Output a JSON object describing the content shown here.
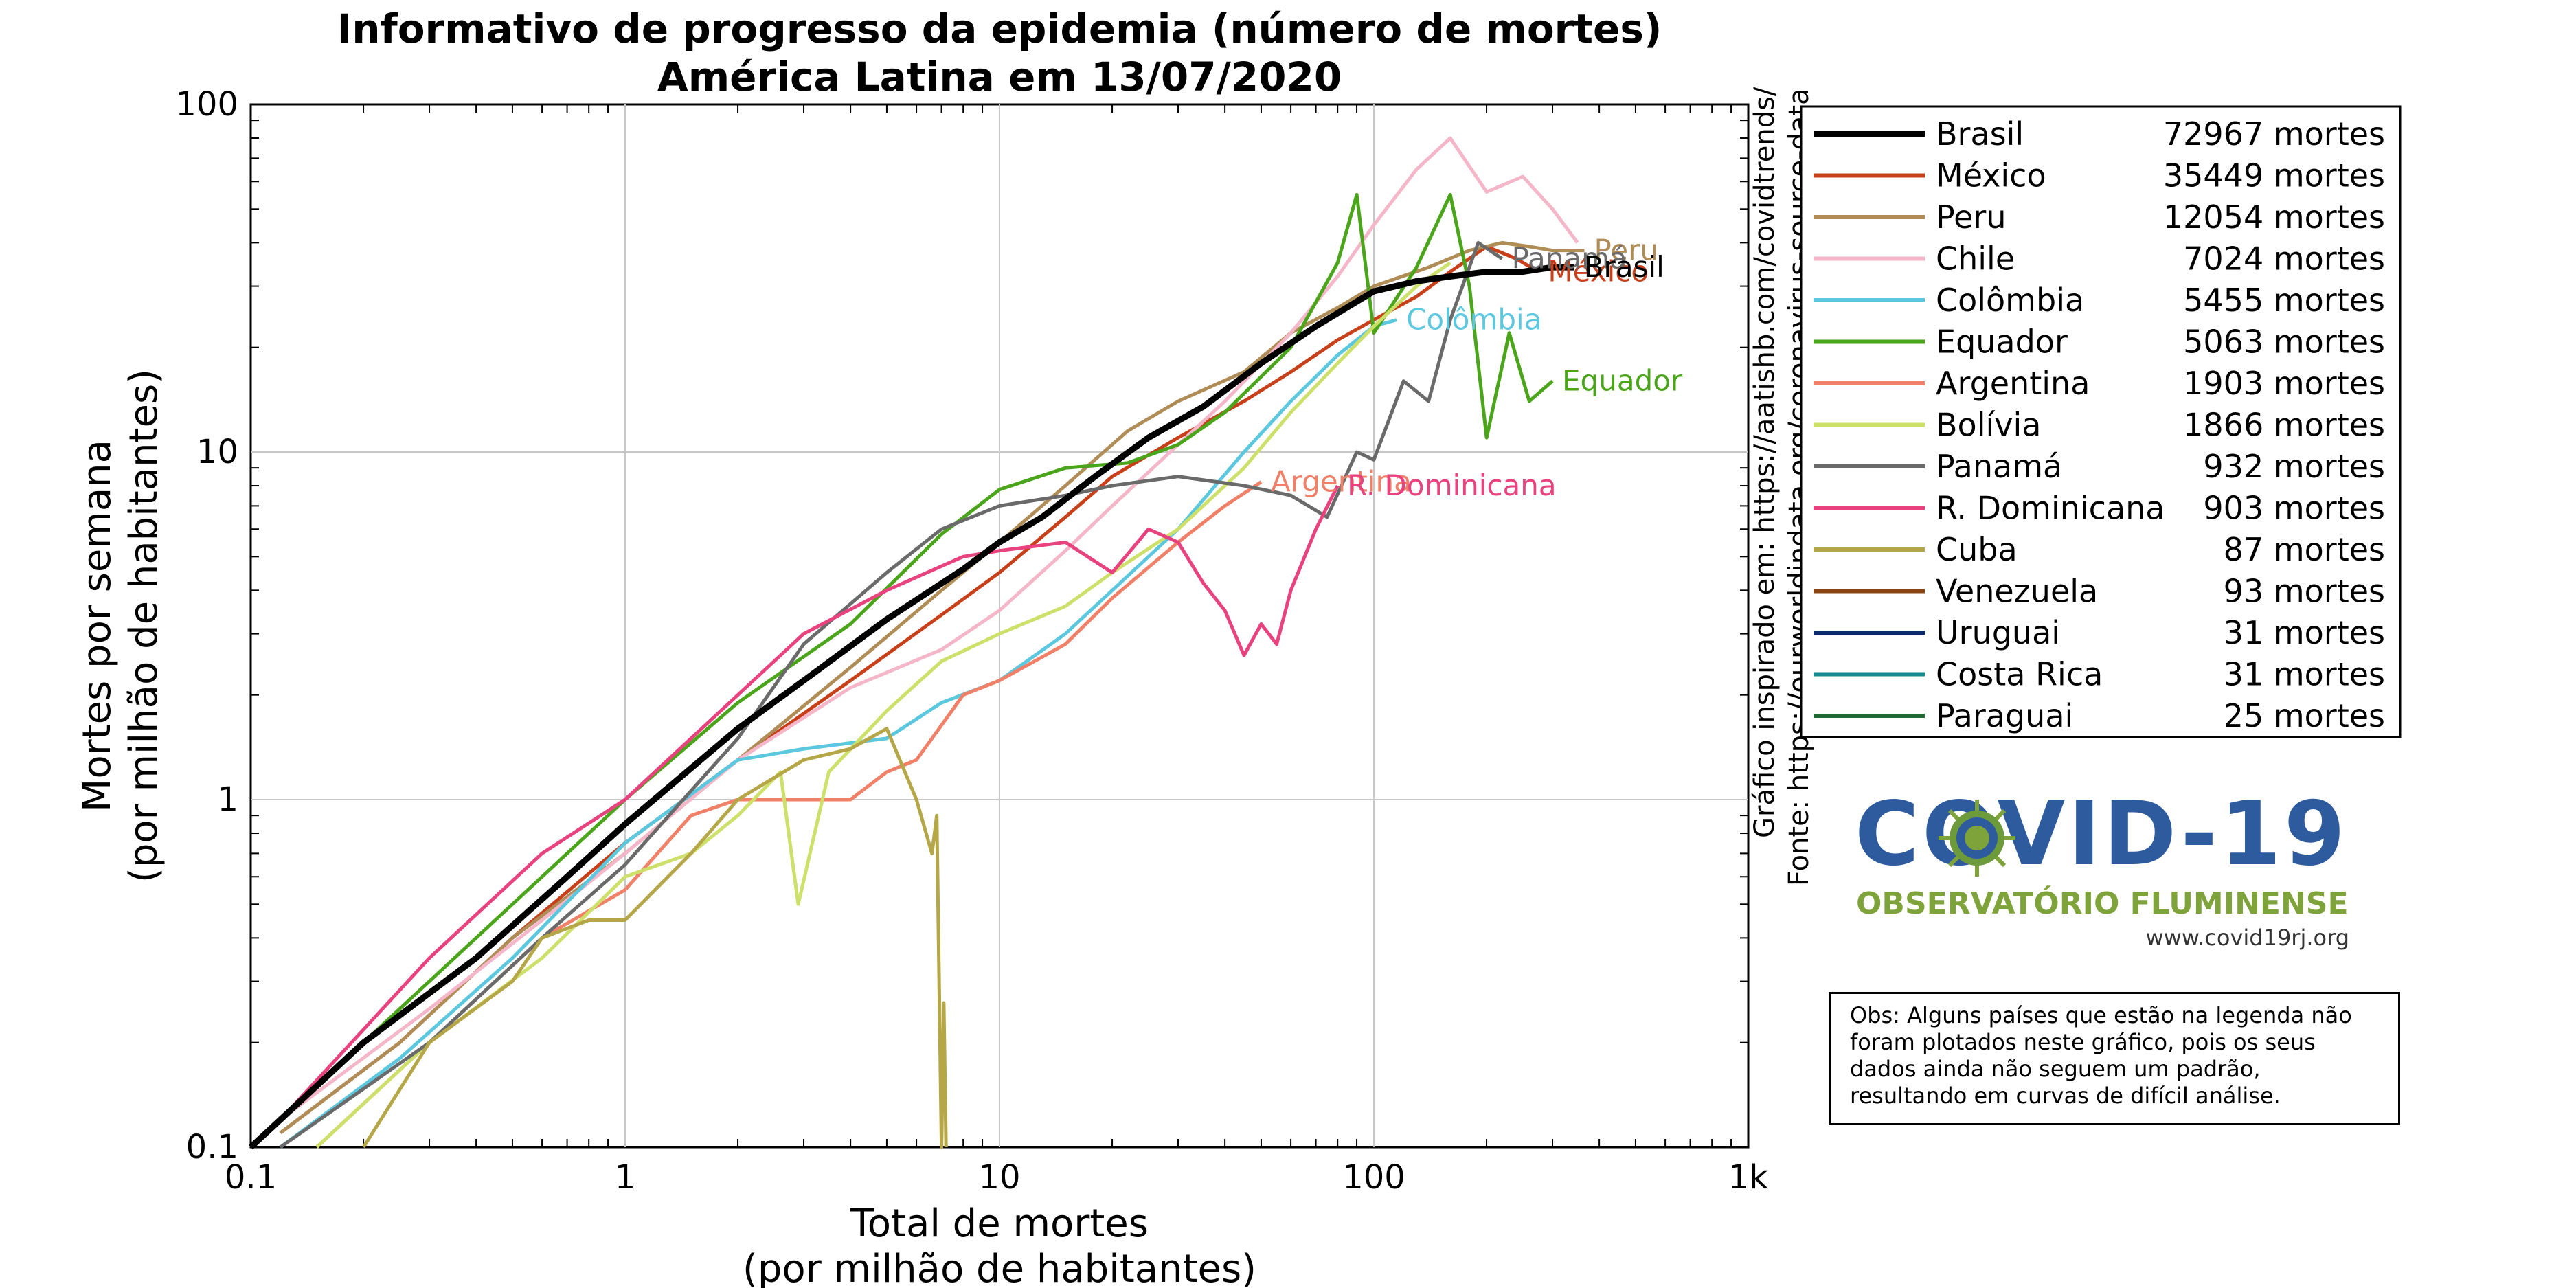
{
  "title_line1": "Informativo de progresso da epidemia (número de mortes)",
  "title_line2": "América Latina em 13/07/2020",
  "chart_data": {
    "type": "line",
    "title": "Informativo de progresso da epidemia (número de mortes) América Latina em 13/07/2020",
    "xlabel_line1": "Total de mortes",
    "xlabel_line2": "(por milhão de habitantes)",
    "ylabel_line1": "Mortes por semana",
    "ylabel_line2": "(por milhão de habitantes)",
    "xscale": "log",
    "yscale": "log",
    "xlim": [
      0.1,
      1000
    ],
    "ylim": [
      0.1,
      100
    ],
    "x_ticks": [
      0.1,
      1,
      10,
      100,
      1000
    ],
    "x_tick_labels": [
      "0.1",
      "1",
      "10",
      "100",
      "1k"
    ],
    "y_ticks": [
      0.1,
      1,
      10,
      100
    ],
    "y_tick_labels": [
      "0.1",
      "1",
      "10",
      "100"
    ],
    "grid": true,
    "legend_position": "right",
    "series": [
      {
        "name": "Brasil",
        "deaths": "72967 mortes",
        "color": "#000000",
        "bold": true,
        "label": "Brasil",
        "x": [
          0.1,
          0.2,
          0.4,
          0.7,
          1,
          2,
          3,
          5,
          8,
          10,
          13,
          18,
          25,
          35,
          50,
          70,
          100,
          130,
          160,
          200,
          250,
          300,
          343
        ],
        "y": [
          0.1,
          0.2,
          0.35,
          0.6,
          0.85,
          1.6,
          2.2,
          3.3,
          4.6,
          5.5,
          6.5,
          8.5,
          11,
          13.5,
          18,
          23,
          29,
          31,
          32,
          33,
          33,
          34,
          34
        ]
      },
      {
        "name": "México",
        "deaths": "35449 mortes",
        "color": "#c7401a",
        "label": "México",
        "x": [
          0.12,
          0.25,
          0.5,
          1,
          2,
          4,
          7,
          10,
          15,
          20,
          30,
          45,
          60,
          80,
          100,
          130,
          160,
          200,
          240,
          275
        ],
        "y": [
          0.11,
          0.2,
          0.4,
          0.75,
          1.3,
          2.2,
          3.4,
          4.5,
          6.5,
          8.5,
          11,
          14,
          17,
          21,
          24,
          28,
          33,
          39,
          36,
          33
        ]
      },
      {
        "name": "Peru",
        "deaths": "12054 mortes",
        "color": "#b08d57",
        "label": "Peru",
        "x": [
          0.12,
          0.25,
          0.5,
          1,
          2,
          4,
          7,
          10,
          15,
          22,
          30,
          45,
          60,
          80,
          100,
          140,
          180,
          220,
          260,
          300,
          365
        ],
        "y": [
          0.11,
          0.2,
          0.4,
          0.7,
          1.3,
          2.4,
          4,
          5.5,
          8,
          11.5,
          14,
          17,
          22,
          26,
          30,
          34,
          38,
          40,
          39,
          38,
          38
        ]
      },
      {
        "name": "Chile",
        "deaths": "7024 mortes",
        "color": "#f4b6c8",
        "label": "",
        "x": [
          0.12,
          0.3,
          0.6,
          1,
          2,
          4,
          7,
          10,
          15,
          20,
          30,
          40,
          60,
          80,
          100,
          130,
          160,
          200,
          250,
          300,
          350
        ],
        "y": [
          0.12,
          0.25,
          0.45,
          0.7,
          1.3,
          2.1,
          2.7,
          3.5,
          5.2,
          7,
          10.5,
          14,
          22,
          32,
          45,
          65,
          80,
          56,
          62,
          50,
          40
        ]
      },
      {
        "name": "Colômbia",
        "deaths": "5455 mortes",
        "color": "#5cc8e0",
        "label": "Colômbia",
        "x": [
          0.12,
          0.25,
          0.5,
          1,
          2,
          3,
          5,
          7,
          10,
          15,
          20,
          30,
          45,
          60,
          80,
          100,
          115
        ],
        "y": [
          0.1,
          0.18,
          0.35,
          0.75,
          1.3,
          1.4,
          1.5,
          1.9,
          2.2,
          3,
          4,
          6,
          10,
          14,
          19,
          23,
          24
        ]
      },
      {
        "name": "Equador",
        "deaths": "5063 mortes",
        "color": "#4aa51b",
        "label": "Equador",
        "x": [
          0.1,
          0.3,
          0.6,
          1,
          2,
          4,
          7,
          10,
          15,
          22,
          30,
          40,
          60,
          80,
          90,
          100,
          130,
          160,
          180,
          200,
          230,
          260,
          300
        ],
        "y": [
          0.1,
          0.3,
          0.6,
          1,
          1.9,
          3.2,
          5.8,
          7.8,
          9,
          9.3,
          10.5,
          13,
          20,
          35,
          55,
          22,
          34,
          55,
          30,
          11,
          22,
          14,
          16
        ]
      },
      {
        "name": "Argentina",
        "deaths": "1903 mortes",
        "color": "#f08068",
        "label": "Argentina",
        "x": [
          0.15,
          0.3,
          0.6,
          1,
          1.5,
          2,
          3,
          4,
          5,
          6,
          8,
          10,
          15,
          20,
          30,
          40,
          50
        ],
        "y": [
          0.1,
          0.2,
          0.4,
          0.55,
          0.9,
          1.0,
          1.0,
          1.0,
          1.2,
          1.3,
          2,
          2.2,
          2.8,
          3.8,
          5.5,
          7,
          8.2
        ]
      },
      {
        "name": "Bolívia",
        "deaths": "1866 mortes",
        "color": "#cde06a",
        "label": "",
        "x": [
          0.15,
          0.3,
          0.6,
          1,
          1.5,
          2,
          2.6,
          2.9,
          3.5,
          5,
          7,
          10,
          15,
          20,
          30,
          45,
          60,
          80,
          100,
          130,
          160
        ],
        "y": [
          0.1,
          0.2,
          0.35,
          0.6,
          0.7,
          0.9,
          1.2,
          0.5,
          1.2,
          1.8,
          2.5,
          3,
          3.6,
          4.5,
          6,
          9,
          13,
          18,
          23,
          30,
          35
        ]
      },
      {
        "name": "Panamá",
        "deaths": "932 mortes",
        "color": "#6a6a6a",
        "label": "Panamá",
        "x": [
          0.12,
          0.3,
          0.6,
          1,
          2,
          3,
          5,
          7,
          10,
          15,
          20,
          30,
          45,
          60,
          75,
          90,
          100,
          120,
          140,
          160,
          190,
          220
        ],
        "y": [
          0.1,
          0.2,
          0.4,
          0.65,
          1.5,
          2.8,
          4.5,
          6,
          7,
          7.5,
          8,
          8.5,
          8,
          7.5,
          6.5,
          10,
          9.5,
          16,
          14,
          24,
          40,
          36
        ]
      },
      {
        "name": "R. Dominicana",
        "deaths": "903 mortes",
        "color": "#e8437e",
        "label": "R. Dominicana",
        "x": [
          0.12,
          0.3,
          0.6,
          1,
          2,
          3,
          5,
          8,
          10,
          15,
          20,
          25,
          30,
          35,
          40,
          45,
          50,
          55,
          60,
          70,
          80
        ],
        "y": [
          0.12,
          0.35,
          0.7,
          1,
          2,
          3,
          4,
          5,
          5.2,
          5.5,
          4.5,
          6,
          5.5,
          4.2,
          3.5,
          2.6,
          3.2,
          2.8,
          4,
          6,
          8
        ]
      },
      {
        "name": "Cuba",
        "deaths": "87 mortes",
        "color": "#b5a748",
        "label": "",
        "x": [
          0.2,
          0.3,
          0.5,
          0.6,
          0.8,
          1.0,
          1.5,
          2,
          3,
          4,
          5,
          6,
          6.6,
          6.8,
          7.0,
          7.1,
          7.2
        ],
        "y": [
          0.1,
          0.2,
          0.3,
          0.4,
          0.45,
          0.45,
          0.7,
          1.0,
          1.3,
          1.4,
          1.6,
          1.0,
          0.7,
          0.9,
          0.1,
          0.26,
          0.1
        ]
      },
      {
        "name": "Venezuela",
        "deaths": "93 mortes",
        "color": "#8b4513",
        "label": "",
        "x": [],
        "y": []
      },
      {
        "name": "Uruguai",
        "deaths": "31 mortes",
        "color": "#0a2a6e",
        "label": "",
        "x": [],
        "y": []
      },
      {
        "name": "Costa Rica",
        "deaths": "31 mortes",
        "color": "#138b8f",
        "label": "",
        "x": [],
        "y": []
      },
      {
        "name": "Paraguai",
        "deaths": "25 mortes",
        "color": "#1e6b34",
        "label": "",
        "x": [],
        "y": []
      }
    ]
  },
  "source_line1": "Gráfico inspirado em: https://aatishb.com/covidtrends/",
  "source_line2": "Fonte: https://ourworldindata.org/coronavirus-source-data",
  "logo": {
    "main": "COVID-19",
    "sub": "OBSERVATÓRIO FLUMINENSE",
    "url": "www.covid19rj.org"
  },
  "obs_text": "Obs: Alguns países que estão na legenda não foram plotados neste gráfico, pois os seus dados ainda não seguem um padrão, resultando em curvas de difícil análise."
}
